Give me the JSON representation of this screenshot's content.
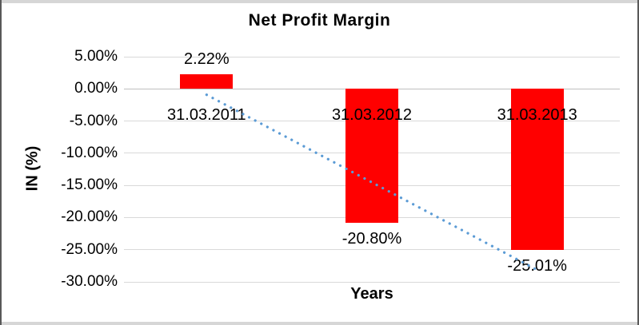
{
  "chart_data": {
    "type": "bar",
    "title": "Net Profit Margin",
    "xlabel": "Years",
    "ylabel": "IN (%)",
    "categories": [
      "31.03.2011",
      "31.03.2012",
      "31.03.2013"
    ],
    "values": [
      2.22,
      -20.8,
      -25.01
    ],
    "data_labels": [
      "2.22%",
      "-20.80%",
      "-25.01%"
    ],
    "y_ticks": [
      {
        "label": "5.00%",
        "value": 5
      },
      {
        "label": "0.00%",
        "value": 0
      },
      {
        "label": "-5.00%",
        "value": -5
      },
      {
        "label": "-10.00%",
        "value": -10
      },
      {
        "label": "-15.00%",
        "value": -15
      },
      {
        "label": "-20.00%",
        "value": -20
      },
      {
        "label": "-25.00%",
        "value": -25
      },
      {
        "label": "-30.00%",
        "value": -30
      }
    ],
    "ylim": [
      -30,
      5
    ],
    "grid": true,
    "legend": "none",
    "colors": {
      "bar": "#FF0000",
      "trendline": "#5B9BD5",
      "gridline": "#D9D9D9",
      "zero_axis_line": "#BFBFBF",
      "text": "#000000"
    },
    "trendline": {
      "type": "linear",
      "style": "dotted"
    }
  }
}
